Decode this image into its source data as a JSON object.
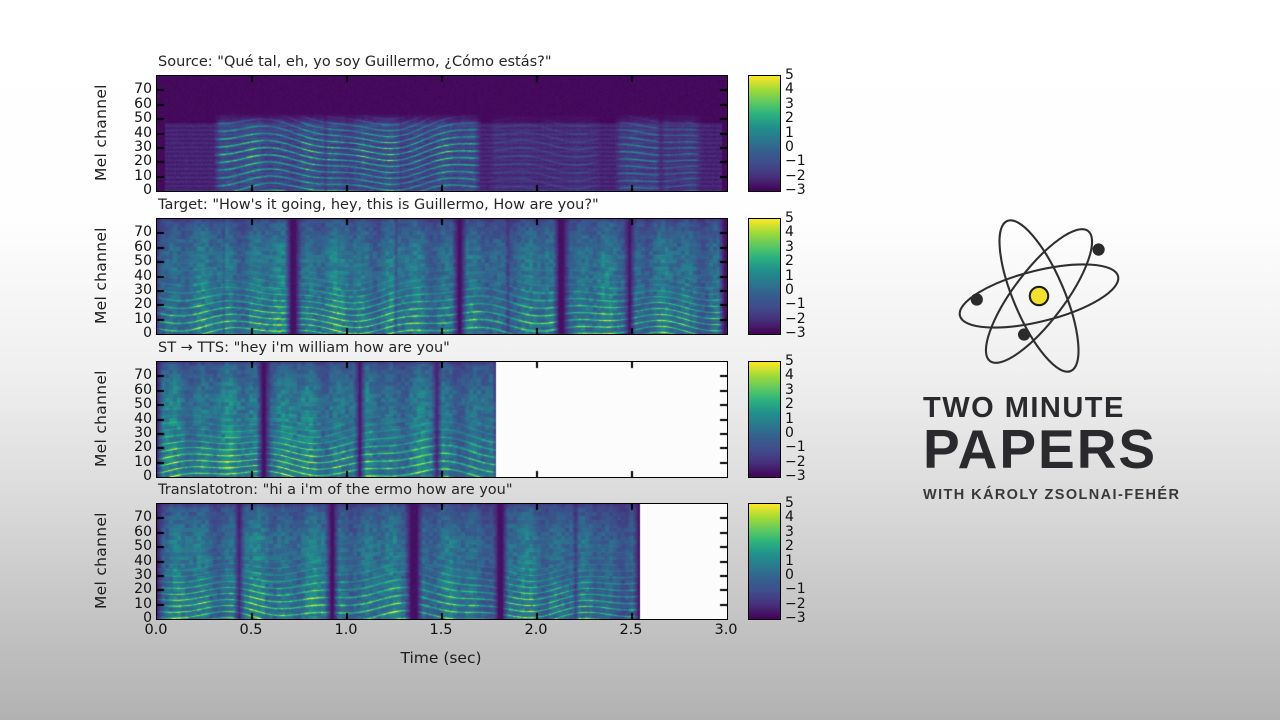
{
  "figure": {
    "xlabel": "Time (sec)",
    "ylabel": "Mel channel",
    "xticks": [
      "0.0",
      "0.5",
      "1.0",
      "1.5",
      "2.0",
      "2.5",
      "3.0"
    ],
    "yticks": [
      "70",
      "60",
      "50",
      "40",
      "30",
      "20",
      "10",
      "0"
    ],
    "colorbar_ticks": [
      "5",
      "4",
      "3",
      "2",
      "1",
      "0",
      "−1",
      "−2",
      "−3"
    ],
    "colormap": "viridis",
    "value_min": -3,
    "value_max": 5
  },
  "chart_data": [
    {
      "type": "heatmap",
      "title": "Source: \"Qué tal, eh, yo soy Guillermo, ¿Cómo estás?\"",
      "system": "Source",
      "transcript": "Qué tal, eh, yo soy Guillermo, ¿Cómo estás?",
      "x_range": [
        0,
        3.0
      ],
      "y_range": [
        0,
        80
      ],
      "value_range": [
        -3,
        5
      ],
      "colormap": "viridis",
      "content_end_sec": 3.0,
      "band_top_channel": 48,
      "noise_floor": {
        "t0": 0.04,
        "t1": 2.97,
        "level": 0.11,
        "top": 48
      },
      "segments": [
        {
          "t0": 0.33,
          "t1": 0.87,
          "amp": 1.0
        },
        {
          "t0": 0.9,
          "t1": 1.27,
          "amp": 1.0
        },
        {
          "t0": 1.29,
          "t1": 1.67,
          "amp": 0.95
        },
        {
          "t0": 1.78,
          "t1": 2.3,
          "amp": 0.22
        },
        {
          "t0": 2.44,
          "t1": 2.62,
          "amp": 0.6
        },
        {
          "t0": 2.68,
          "t1": 2.83,
          "amp": 0.5
        }
      ],
      "render": {
        "bg": 0.01,
        "wash": 0.14,
        "hgain": 0.8,
        "hdecay": 30,
        "hpeak": 30,
        "seed": 1
      }
    },
    {
      "type": "heatmap",
      "title": "Target: \"How's it going, hey, this is Guillermo, How are you?\"",
      "system": "Target",
      "transcript": "How's it going, hey, this is Guillermo, How are you?",
      "x_range": [
        0,
        3.0
      ],
      "y_range": [
        0,
        80
      ],
      "value_range": [
        -3,
        5
      ],
      "colormap": "viridis",
      "content_end_sec": 3.0,
      "band_top_channel": 78,
      "noise_floor": null,
      "segments": [
        {
          "t0": 0.02,
          "t1": 0.34,
          "amp": 0.95
        },
        {
          "t0": 0.36,
          "t1": 0.67,
          "amp": 1.0
        },
        {
          "t0": 0.76,
          "t1": 1.24,
          "amp": 1.0
        },
        {
          "t0": 1.27,
          "t1": 1.55,
          "amp": 0.95
        },
        {
          "t0": 1.63,
          "t1": 1.83,
          "amp": 0.85
        },
        {
          "t0": 1.86,
          "t1": 2.08,
          "amp": 0.9
        },
        {
          "t0": 2.17,
          "t1": 2.45,
          "amp": 0.95
        },
        {
          "t0": 2.52,
          "t1": 2.95,
          "amp": 0.9
        }
      ],
      "render": {
        "bg": 0.03,
        "wash": 0.4,
        "hgain": 0.6,
        "hdecay": 26,
        "hpeak": 12,
        "seed": 2
      }
    },
    {
      "type": "heatmap",
      "title": "ST → TTS: \"hey i'm william how are you\"",
      "system": "ST → TTS",
      "transcript": "hey i'm william how are you",
      "x_range": [
        0,
        3.0
      ],
      "y_range": [
        0,
        80
      ],
      "value_range": [
        -3,
        5
      ],
      "colormap": "viridis",
      "content_end_sec": 1.78,
      "band_top_channel": 78,
      "noise_floor": null,
      "segments": [
        {
          "t0": 0.03,
          "t1": 0.52,
          "amp": 1.0
        },
        {
          "t0": 0.6,
          "t1": 1.03,
          "amp": 1.0
        },
        {
          "t0": 1.1,
          "t1": 1.44,
          "amp": 0.95
        },
        {
          "t0": 1.5,
          "t1": 1.76,
          "amp": 0.9
        }
      ],
      "render": {
        "bg": 0.03,
        "wash": 0.42,
        "hgain": 0.62,
        "hdecay": 26,
        "hpeak": 12,
        "seed": 3
      }
    },
    {
      "type": "heatmap",
      "title": "Translatotron: \"hi a i'm of the ermo how are you\"",
      "system": "Translatotron",
      "transcript": "hi a i'm of the ermo how are you",
      "x_range": [
        0,
        3.0
      ],
      "y_range": [
        0,
        80
      ],
      "value_range": [
        -3,
        5
      ],
      "colormap": "viridis",
      "content_end_sec": 2.54,
      "band_top_channel": 78,
      "noise_floor": null,
      "segments": [
        {
          "t0": 0.03,
          "t1": 0.4,
          "amp": 0.95
        },
        {
          "t0": 0.46,
          "t1": 0.88,
          "amp": 1.0
        },
        {
          "t0": 0.96,
          "t1": 1.3,
          "amp": 0.95
        },
        {
          "t0": 1.4,
          "t1": 1.76,
          "amp": 0.9
        },
        {
          "t0": 1.85,
          "t1": 2.18,
          "amp": 0.95
        },
        {
          "t0": 2.22,
          "t1": 2.5,
          "amp": 0.8
        }
      ],
      "render": {
        "bg": 0.03,
        "wash": 0.4,
        "hgain": 0.6,
        "hdecay": 26,
        "hpeak": 12,
        "seed": 4
      }
    }
  ],
  "logo": {
    "line1": "TWO MINUTE",
    "line2": "PAPERS",
    "subtitle": "WITH KÁROLY ZSOLNAI-FEHÉR",
    "nucleus_color": "#f2e12e",
    "orbit_color": "#2f2f2f",
    "text_color": "#2a2a2e"
  },
  "colors": {
    "background_top": "#ffffff",
    "background_bottom": "#b2b2b2",
    "viridis_min": "#440154",
    "viridis_max": "#fde725",
    "empty_plot": "#ffffff"
  }
}
